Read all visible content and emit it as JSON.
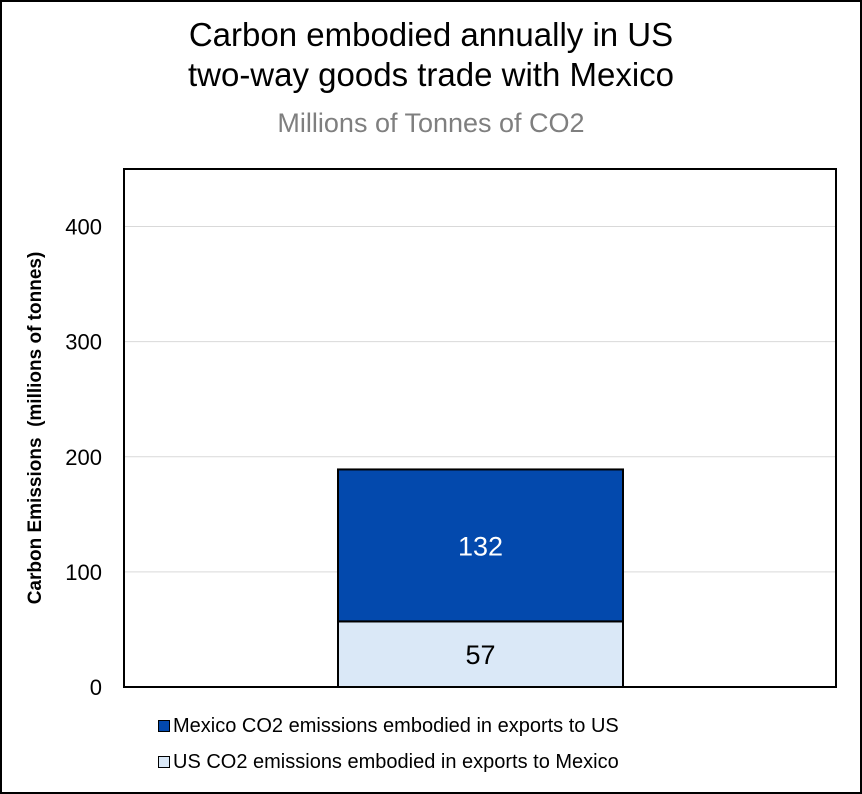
{
  "chart_data": {
    "type": "bar",
    "stacked": true,
    "title_lines": [
      "Carbon embodied annually in US",
      "two-way goods trade with Mexico"
    ],
    "subtitle": "Millions of Tonnes of CO2",
    "ylabel": "Carbon Emissions  (millions of tonnes)",
    "xlabel": "",
    "ylim": [
      0,
      450
    ],
    "yticks": [
      0,
      100,
      200,
      300,
      400
    ],
    "grid": true,
    "legend_position": "bottom",
    "categories": [
      ""
    ],
    "series": [
      {
        "name": "US CO2 emissions embodied in exports to Mexico",
        "values": [
          57
        ],
        "color": "#dae8f7",
        "label_color": "#000000"
      },
      {
        "name": "Mexico CO2 emissions embodied in exports to US",
        "values": [
          132
        ],
        "color": "#0349ad",
        "label_color": "#ffffff"
      }
    ],
    "data_labels": [
      "57",
      "132"
    ]
  }
}
